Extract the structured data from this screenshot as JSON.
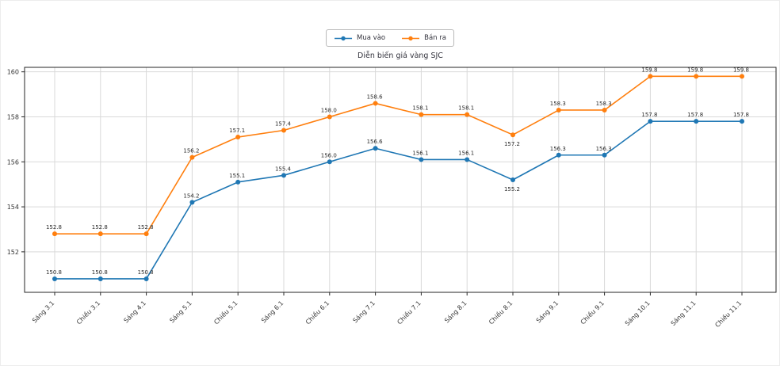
{
  "page": {
    "background": "#ffffff"
  },
  "legend": {
    "items": [
      {
        "label": "Mua vào",
        "color": "#1f77b4"
      },
      {
        "label": "Bán ra",
        "color": "#ff7f0e"
      }
    ]
  },
  "chart_data": {
    "type": "line",
    "title": "Diễn biến giá vàng SJC",
    "xlabel": "",
    "ylabel": "",
    "categories": [
      "Sáng 3.1",
      "Chiều 3.1",
      "Sáng 4.1",
      "Sáng 5.1",
      "Chiều 5.1",
      "Sáng 6.1",
      "Chiều 6.1",
      "Sáng 7.1",
      "Chiều 7.1",
      "Sáng 8.1",
      "Chiều 8.1",
      "Sáng 9.1",
      "Chiều 9.1",
      "Sáng 10.1",
      "Sáng 11.1",
      "Chiều 11.1"
    ],
    "series": [
      {
        "name": "Mua vào",
        "color": "#1f77b4",
        "values": [
          150.8,
          150.8,
          150.8,
          154.2,
          155.1,
          155.4,
          156.0,
          156.6,
          156.1,
          156.1,
          155.2,
          156.3,
          156.3,
          157.8,
          157.8,
          157.8
        ]
      },
      {
        "name": "Bán ra",
        "color": "#ff7f0e",
        "values": [
          152.8,
          152.8,
          152.8,
          156.2,
          157.1,
          157.4,
          158.0,
          158.6,
          158.1,
          158.1,
          157.2,
          158.3,
          158.3,
          159.8,
          159.8,
          159.8
        ]
      }
    ],
    "yticks": [
      152,
      154,
      156,
      158,
      160
    ],
    "ylim": [
      150.2,
      160.2
    ],
    "grid": true,
    "grid_color": "#d9d9d9",
    "frame_color": "#262626",
    "legend_position": "top-center",
    "point_labels": true
  }
}
